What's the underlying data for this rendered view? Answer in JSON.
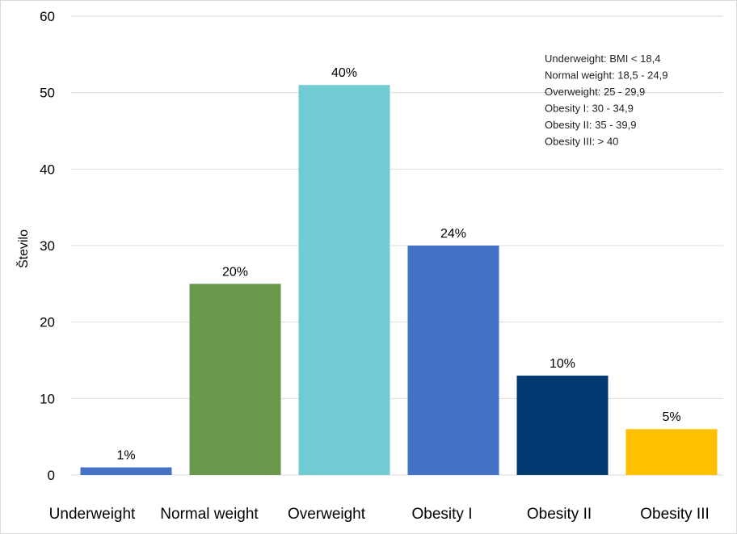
{
  "chart_data": {
    "type": "bar",
    "categories": [
      "Underweight",
      "Normal weight",
      "Overweight",
      "Obesity I",
      "Obesity II",
      "Obesity III"
    ],
    "values": [
      1,
      25,
      51,
      30,
      13,
      6
    ],
    "data_labels": [
      "1%",
      "20%",
      "40%",
      "24%",
      "10%",
      "5%"
    ],
    "colors": [
      "#4472C4",
      "#6A994E",
      "#70CCD2",
      "#4472C4",
      "#003A70",
      "#FFC000"
    ],
    "ylabel": "Število",
    "ylim": [
      0,
      60
    ],
    "yticks": [
      0,
      10,
      20,
      30,
      40,
      50,
      60
    ],
    "grid": true,
    "legend": "none",
    "annotation_lines": [
      "Underweight:  BMI < 18,4",
      "Normal weight: 18,5 - 24,9",
      "Overweight: 25 - 29,9",
      "Obesity I: 30 - 34,9",
      "Obesity II: 35 - 39,9",
      "Obesity III: > 40"
    ]
  }
}
